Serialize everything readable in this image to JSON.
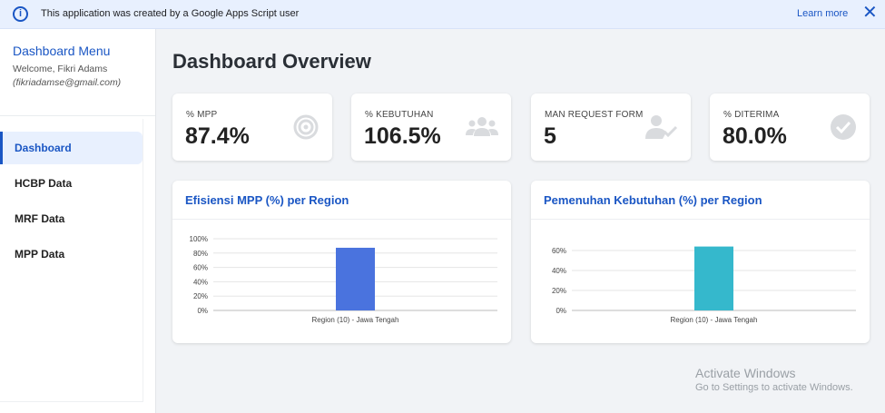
{
  "banner": {
    "message": "This application was created by a Google Apps Script user",
    "learn_more": "Learn more",
    "close_glyph": "✕"
  },
  "sidebar": {
    "title": "Dashboard Menu",
    "welcome": "Welcome, Fikri Adams",
    "email": "(fikriadamse@gmail.com)",
    "items": [
      {
        "label": "Dashboard",
        "active": true
      },
      {
        "label": "HCBP Data",
        "active": false
      },
      {
        "label": "MRF Data",
        "active": false
      },
      {
        "label": "MPP Data",
        "active": false
      }
    ]
  },
  "main": {
    "title": "Dashboard Overview"
  },
  "cards": [
    {
      "label": "% MPP",
      "value": "87.4%",
      "icon": "target-icon"
    },
    {
      "label": "% KEBUTUHAN",
      "value": "106.5%",
      "icon": "users-icon"
    },
    {
      "label": "MAN REQUEST FORM",
      "value": "5",
      "icon": "user-check-icon"
    },
    {
      "label": "% DITERIMA",
      "value": "80.0%",
      "icon": "check-circle-icon"
    }
  ],
  "colors": {
    "accent": "#1a56c4",
    "bar_mpp": "#4a73de",
    "bar_kebutuhan": "#35b8cc",
    "icon_gray": "#d9dbde"
  },
  "chart_data": [
    {
      "type": "bar",
      "title": "Efisiensi MPP (%) per Region",
      "categories": [
        "Region (10) - Jawa Tengah"
      ],
      "values": [
        87.4
      ],
      "ylim": [
        0,
        100
      ],
      "yticks": [
        "0%",
        "20%",
        "40%",
        "60%",
        "80%",
        "100%"
      ],
      "ytick_values": [
        0,
        20,
        40,
        60,
        80,
        100
      ],
      "color": "#4a73de",
      "grid": true
    },
    {
      "type": "bar",
      "title": "Pemenuhan Kebutuhan (%) per Region",
      "categories": [
        "Region (10) - Jawa Tengah"
      ],
      "values": [
        64
      ],
      "ylim": [
        0,
        70
      ],
      "yticks": [
        "0%",
        "20%",
        "40%",
        "60%"
      ],
      "ytick_values": [
        0,
        20,
        40,
        60
      ],
      "color": "#35b8cc",
      "grid": true
    }
  ],
  "watermark": {
    "line1": "Activate Windows",
    "line2": "Go to Settings to activate Windows."
  }
}
